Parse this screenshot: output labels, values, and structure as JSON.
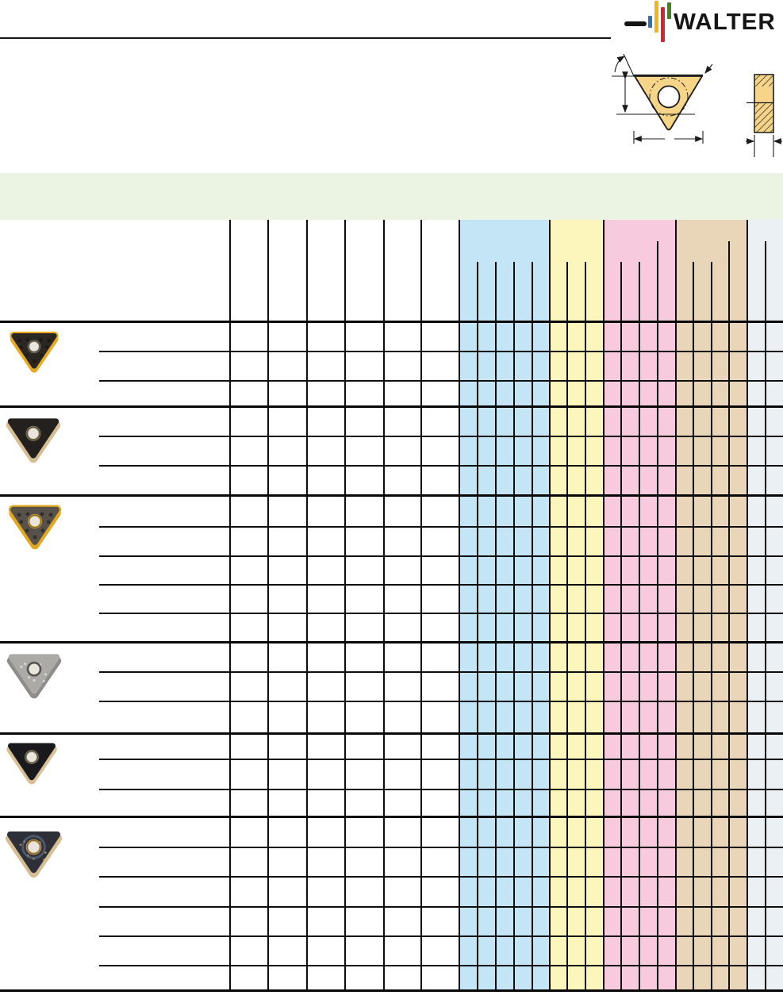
{
  "brand": {
    "name": "WALTER",
    "logo_bar_colors": {
      "dash": "#141414",
      "blue": "#356fb0",
      "yellow": "#f2b517",
      "red": "#d62430",
      "green": "#44851f"
    }
  },
  "drawing": {
    "views": [
      "insert-top-view",
      "insert-side-view"
    ],
    "insert_fill_color": "#f6d588",
    "line_color": "#1b1b1b"
  },
  "table": {
    "title_band_color": "#ebf3e2",
    "column_groups": [
      {
        "name": "white-spec-columns",
        "color": "#ffffff",
        "columns": 6
      },
      {
        "name": "blue-group",
        "color": "#c4e5f5",
        "columns": 5
      },
      {
        "name": "yellow-group",
        "color": "#fcf6bc",
        "columns": 3
      },
      {
        "name": "pink-group",
        "color": "#f7cbdd",
        "columns": 4
      },
      {
        "name": "tan-group",
        "color": "#e9d6b8",
        "columns": 4
      },
      {
        "name": "gray-group",
        "color": "#eaf0f4",
        "columns": 2
      }
    ],
    "blocks": [
      {
        "rows": 3,
        "photo": {
          "name": "insert-photo-black-gold-rim",
          "face": "#2a2622",
          "side": "#e6ad24",
          "ring": "#7a7264",
          "style": "rim-dimples"
        }
      },
      {
        "rows": 3,
        "photo": {
          "name": "insert-photo-black-tan-base",
          "face": "#23201e",
          "side": "#d6bd92",
          "ring": "#857a5e",
          "style": "plain"
        }
      },
      {
        "rows": 5,
        "photo": {
          "name": "insert-photo-gray-gold-rim",
          "face": "#57514a",
          "side": "#e2a81f",
          "ring": "#caa23c",
          "style": "rim-dimples"
        }
      },
      {
        "rows": 3,
        "photo": {
          "name": "insert-photo-silver",
          "face": "#abaaa6",
          "side": "#8e8c88",
          "ring": "#6e6c68",
          "style": "speckle-light"
        }
      },
      {
        "rows": 3,
        "photo": {
          "name": "insert-photo-dark-tan-base",
          "face": "#1a1a1e",
          "side": "#d8bf94",
          "ring": "#8c8268",
          "style": "plain"
        }
      },
      {
        "rows": 6,
        "photo": {
          "name": "insert-photo-blue-speckle",
          "face": "#2d3038",
          "side": "#d6bd92",
          "ring": "#c9a258",
          "style": "speckle-gold"
        }
      }
    ]
  }
}
